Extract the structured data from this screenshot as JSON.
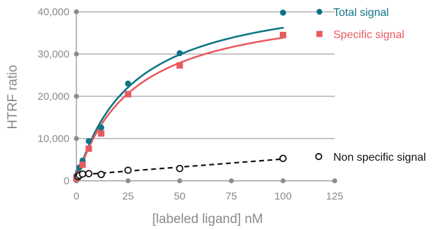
{
  "chart_data": {
    "type": "scatter",
    "xlabel": "[labeled ligand] nM",
    "ylabel": "HTRF ratio",
    "xlim": [
      0,
      125
    ],
    "ylim": [
      0,
      40000
    ],
    "x_ticks": [
      0,
      25,
      50,
      75,
      100,
      125
    ],
    "x_tick_labels": [
      "0",
      "25",
      "50",
      "75",
      "100",
      "125"
    ],
    "y_ticks": [
      0,
      10000,
      20000,
      30000,
      40000
    ],
    "y_tick_labels": [
      "0",
      "10,000",
      "20,000",
      "30,000",
      "40,000"
    ],
    "grid": "horizontal",
    "legend_position": "right",
    "series": [
      {
        "name": "Total signal",
        "marker": "filled-circle",
        "color": "#0f7586",
        "line": "solid-fit",
        "points": [
          {
            "x": 0,
            "y": 1200
          },
          {
            "x": 0.8,
            "y": 2000
          },
          {
            "x": 1.5,
            "y": 3200
          },
          {
            "x": 3,
            "y": 4800
          },
          {
            "x": 6,
            "y": 9400
          },
          {
            "x": 12,
            "y": 12600
          },
          {
            "x": 25,
            "y": 23000
          },
          {
            "x": 50,
            "y": 30200
          },
          {
            "x": 100,
            "y": 39800
          }
        ],
        "fit": {
          "model": "one-site saturation",
          "bmax": 46000,
          "kd": 27
        }
      },
      {
        "name": "Specific signal",
        "marker": "filled-square",
        "color": "#e85a5e",
        "line": "solid-fit",
        "points": [
          {
            "x": 0,
            "y": 600
          },
          {
            "x": 0.8,
            "y": 1000
          },
          {
            "x": 1.5,
            "y": 1600
          },
          {
            "x": 3,
            "y": 3800
          },
          {
            "x": 6,
            "y": 7600
          },
          {
            "x": 12,
            "y": 11200
          },
          {
            "x": 25,
            "y": 20500
          },
          {
            "x": 50,
            "y": 27300
          },
          {
            "x": 100,
            "y": 34500
          }
        ],
        "fit": {
          "model": "one-site saturation",
          "bmax": 43000,
          "kd": 27
        }
      },
      {
        "name": "Non specific signal",
        "marker": "open-circle",
        "color": "#111111",
        "line": "dashed-linear",
        "points": [
          {
            "x": 0.8,
            "y": 1000
          },
          {
            "x": 1.5,
            "y": 1300
          },
          {
            "x": 3,
            "y": 1600
          },
          {
            "x": 6,
            "y": 1700
          },
          {
            "x": 12,
            "y": 1500
          },
          {
            "x": 25,
            "y": 2500
          },
          {
            "x": 50,
            "y": 2900
          },
          {
            "x": 100,
            "y": 5300
          }
        ],
        "fit": {
          "model": "linear",
          "slope": 38,
          "intercept": 1350
        }
      }
    ]
  }
}
